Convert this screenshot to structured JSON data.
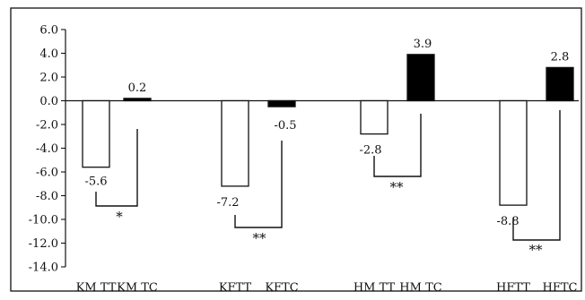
{
  "chart_data": {
    "type": "bar",
    "categories": [
      "KM TT",
      "KM TC",
      "KFTT",
      "KFTC",
      "HM TT",
      "HM TC",
      "HFTT",
      "HFTC"
    ],
    "values": [
      -5.6,
      0.2,
      -7.2,
      -0.5,
      -2.8,
      3.9,
      -8.8,
      2.8
    ],
    "data_labels": [
      "-5.6",
      "0.2",
      "-7.2",
      "-0.5",
      "-2.8",
      "3.9",
      "-8.8",
      "2.8"
    ],
    "bar_fill": [
      "white",
      "black",
      "white",
      "black",
      "white",
      "black",
      "white",
      "black"
    ],
    "ylim": [
      -14.0,
      6.0
    ],
    "y_ticks": [
      "6.0",
      "4.0",
      "2.0",
      "0.0",
      "-2.0",
      "-4.0",
      "-6.0",
      "-8.0",
      "-10.0",
      "-12.0",
      "-14.0"
    ],
    "y_tick_values": [
      6,
      4,
      2,
      0,
      -2,
      -4,
      -6,
      -8,
      -10,
      -12,
      -14
    ],
    "significance": [
      {
        "pair": [
          0,
          1
        ],
        "label": "*"
      },
      {
        "pair": [
          2,
          3
        ],
        "label": "**"
      },
      {
        "pair": [
          4,
          5
        ],
        "label": "**"
      },
      {
        "pair": [
          6,
          7
        ],
        "label": "**"
      }
    ],
    "title": "",
    "xlabel": "",
    "ylabel": "",
    "grid": false,
    "legend": "none"
  }
}
